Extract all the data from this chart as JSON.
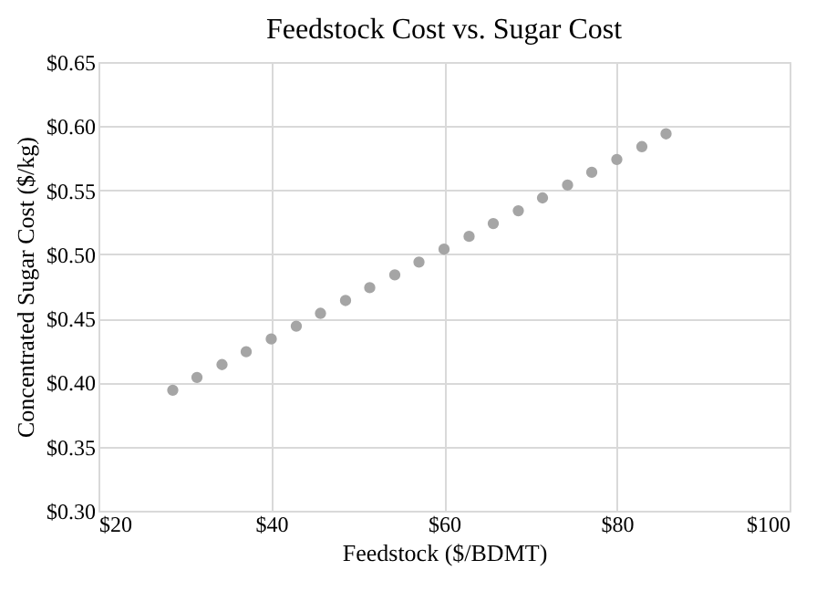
{
  "chart_data": {
    "type": "scatter",
    "title": "Feedstock Cost vs. Sugar Cost",
    "xlabel": "Feedstock ($/BDMT)",
    "ylabel": "Concentrated Sugar Cost ($/kg)",
    "x": [
      28.6,
      31.4,
      34.3,
      37.1,
      40.0,
      42.9,
      45.7,
      48.6,
      51.4,
      54.3,
      57.1,
      60.0,
      62.9,
      65.7,
      68.6,
      71.4,
      74.3,
      77.1,
      80.0,
      82.9,
      85.7
    ],
    "series": [
      {
        "color": "#a5a5a5",
        "values": [
          0.394,
          0.404,
          0.414,
          0.424,
          0.434,
          0.444,
          0.454,
          0.464,
          0.474,
          0.484,
          0.494,
          0.504,
          0.514,
          0.524,
          0.534,
          0.544,
          0.554,
          0.564,
          0.574,
          0.584,
          0.594
        ]
      }
    ],
    "xlim": [
      20,
      100
    ],
    "xticks": [
      {
        "value": 20,
        "label": "$20"
      },
      {
        "value": 40,
        "label": "$40"
      },
      {
        "value": 60,
        "label": "$60"
      },
      {
        "value": 80,
        "label": "$80"
      },
      {
        "value": 100,
        "label": "$100"
      }
    ],
    "ylim": [
      0.3,
      0.65
    ],
    "yticks": [
      {
        "value": 0.3,
        "label": "$0.30"
      },
      {
        "value": 0.35,
        "label": "$0.35"
      },
      {
        "value": 0.4,
        "label": "$0.40"
      },
      {
        "value": 0.45,
        "label": "$0.45"
      },
      {
        "value": 0.5,
        "label": "$0.50"
      },
      {
        "value": 0.55,
        "label": "$0.55"
      },
      {
        "value": 0.6,
        "label": "$0.60"
      },
      {
        "value": 0.65,
        "label": "$0.65"
      }
    ],
    "grid": true,
    "legend": false,
    "marker": "circle"
  }
}
